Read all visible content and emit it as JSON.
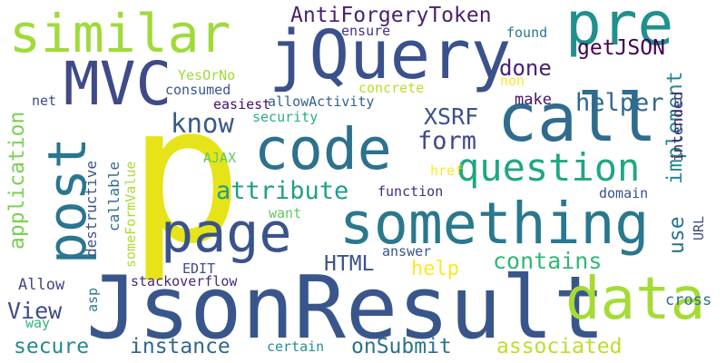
{
  "cloud": {
    "words": [
      {
        "text": "p",
        "color": "#e6e419"
      },
      {
        "text": "JsonResult",
        "color": "#39568c"
      },
      {
        "text": "jQuery",
        "color": "#3b518b"
      },
      {
        "text": "something",
        "color": "#2a788e"
      },
      {
        "text": "call",
        "color": "#2f6c8e"
      },
      {
        "text": "code",
        "color": "#2d718e"
      },
      {
        "text": "similar",
        "color": "#a0da39"
      },
      {
        "text": "MVC",
        "color": "#3e4a89"
      },
      {
        "text": "pre",
        "color": "#21908d"
      },
      {
        "text": "page",
        "color": "#3a538b"
      },
      {
        "text": "data",
        "color": "#a5db36"
      },
      {
        "text": "post",
        "color": "#2b758e"
      },
      {
        "text": "question",
        "color": "#21a685"
      },
      {
        "text": "AntiForgeryToken",
        "color": "#481f70"
      },
      {
        "text": "know",
        "color": "#38598c"
      },
      {
        "text": "form",
        "color": "#3e4989"
      },
      {
        "text": "attribute",
        "color": "#1f9e89"
      },
      {
        "text": "helper",
        "color": "#31688e"
      },
      {
        "text": "done",
        "color": "#482374"
      },
      {
        "text": "getJSON",
        "color": "#440154"
      },
      {
        "text": "XSRF",
        "color": "#3b528b"
      },
      {
        "text": "secure",
        "color": "#238a8d"
      },
      {
        "text": "instance",
        "color": "#30678d"
      },
      {
        "text": "onSubmit",
        "color": "#2c728e"
      },
      {
        "text": "associated",
        "color": "#bddf26"
      },
      {
        "text": "contains",
        "color": "#34b679"
      },
      {
        "text": "HTML",
        "color": "#3b518b"
      },
      {
        "text": "help",
        "color": "#fde725"
      },
      {
        "text": "View",
        "color": "#3e4c8a"
      },
      {
        "text": "implement",
        "color": "#25858e"
      },
      {
        "text": "use",
        "color": "#2c738e"
      },
      {
        "text": "application",
        "color": "#7ad151"
      },
      {
        "text": "ensure",
        "color": "#46327e"
      },
      {
        "text": "found",
        "color": "#2a788e"
      },
      {
        "text": "YesOrNo",
        "color": "#a0da39"
      },
      {
        "text": "consumed",
        "color": "#39558c"
      },
      {
        "text": "allowActivity",
        "color": "#34618d"
      },
      {
        "text": "easiest",
        "color": "#471164"
      },
      {
        "text": "security",
        "color": "#29af7f"
      },
      {
        "text": "net",
        "color": "#3e4c8a"
      },
      {
        "text": "concrete",
        "color": "#bade28"
      },
      {
        "text": "non",
        "color": "#fde725"
      },
      {
        "text": "make",
        "color": "#471365"
      },
      {
        "text": "intended",
        "color": "#482475"
      },
      {
        "text": "destructive",
        "color": "#3b528b"
      },
      {
        "text": "callable",
        "color": "#2e6e8e"
      },
      {
        "text": "AJAX",
        "color": "#5ec962"
      },
      {
        "text": "someFormValue",
        "color": "#addc30"
      },
      {
        "text": "href",
        "color": "#fde725"
      },
      {
        "text": "function",
        "color": "#472d7b"
      },
      {
        "text": "domain",
        "color": "#3b518b"
      },
      {
        "text": "want",
        "color": "#5ec962"
      },
      {
        "text": "URL",
        "color": "#3e4a89"
      },
      {
        "text": "EDIT",
        "color": "#3e4c8a"
      },
      {
        "text": "answer",
        "color": "#3b518b"
      },
      {
        "text": "Allow",
        "color": "#3f4788"
      },
      {
        "text": "asp",
        "color": "#2a778e"
      },
      {
        "text": "stackoverflow",
        "color": "#482878"
      },
      {
        "text": "cross",
        "color": "#2d708e"
      },
      {
        "text": "way",
        "color": "#31b57b"
      },
      {
        "text": "certain",
        "color": "#20928c"
      }
    ]
  }
}
